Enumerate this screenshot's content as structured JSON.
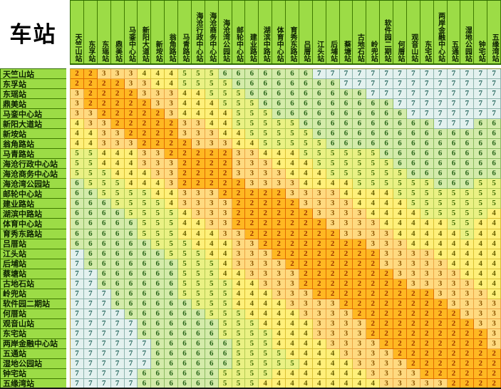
{
  "corner_label": "车站",
  "chart_data": {
    "type": "heatmap",
    "title": "车站",
    "categories": [
      "天竺山站",
      "东孚站",
      "东瑶站",
      "鼎美站",
      "马銮中心站",
      "新阳大道站",
      "新垵站",
      "翁角路站",
      "马青路站",
      "海沧行政中心站",
      "海沧商务中心站",
      "海沧湾公园站",
      "邮轮中心站",
      "建业路站",
      "湖滨中路站",
      "体育中心站",
      "育秀东路站",
      "吕厝站",
      "江头站",
      "后埔站",
      "蔡塘站",
      "古地石站",
      "岭兜站",
      "软件园二期站",
      "何厝站",
      "观音山站",
      "东宅站",
      "两岸金融中心站",
      "五通站",
      "湿地公园站",
      "钟宅站",
      "五缘湾站"
    ],
    "values": [
      [
        2,
        2,
        3,
        3,
        3,
        4,
        4,
        4,
        5,
        5,
        5,
        6,
        6,
        6,
        6,
        6,
        6,
        6,
        7,
        7,
        7,
        7,
        7,
        7,
        7,
        7,
        7,
        7,
        7,
        7,
        7,
        7
      ],
      [
        2,
        2,
        2,
        2,
        3,
        3,
        4,
        4,
        5,
        5,
        5,
        5,
        6,
        6,
        6,
        6,
        6,
        6,
        6,
        6,
        7,
        7,
        7,
        7,
        7,
        7,
        7,
        7,
        7,
        7,
        7,
        7
      ],
      [
        3,
        2,
        2,
        2,
        2,
        3,
        3,
        3,
        4,
        4,
        5,
        5,
        5,
        6,
        6,
        6,
        6,
        6,
        6,
        6,
        6,
        6,
        7,
        7,
        7,
        7,
        7,
        7,
        7,
        7,
        7,
        7
      ],
      [
        3,
        2,
        2,
        2,
        2,
        2,
        3,
        3,
        4,
        4,
        4,
        5,
        5,
        5,
        6,
        6,
        6,
        6,
        6,
        6,
        6,
        6,
        6,
        6,
        7,
        7,
        7,
        7,
        7,
        7,
        7,
        7
      ],
      [
        3,
        3,
        2,
        2,
        2,
        2,
        2,
        3,
        4,
        4,
        4,
        4,
        5,
        5,
        5,
        6,
        6,
        6,
        6,
        6,
        6,
        6,
        6,
        6,
        6,
        7,
        7,
        7,
        7,
        7,
        7,
        7
      ],
      [
        4,
        3,
        3,
        2,
        2,
        2,
        2,
        2,
        3,
        3,
        4,
        4,
        5,
        5,
        5,
        5,
        5,
        6,
        6,
        6,
        6,
        6,
        6,
        6,
        6,
        6,
        6,
        7,
        7,
        7,
        6,
        6
      ],
      [
        4,
        4,
        3,
        3,
        2,
        2,
        2,
        2,
        3,
        3,
        3,
        4,
        4,
        5,
        5,
        5,
        5,
        5,
        6,
        6,
        6,
        6,
        6,
        6,
        6,
        6,
        6,
        6,
        6,
        6,
        6,
        6
      ],
      [
        4,
        4,
        3,
        3,
        3,
        2,
        2,
        2,
        2,
        3,
        3,
        3,
        4,
        4,
        5,
        5,
        5,
        5,
        5,
        6,
        6,
        6,
        6,
        6,
        6,
        6,
        6,
        6,
        6,
        6,
        6,
        6
      ],
      [
        5,
        5,
        4,
        4,
        4,
        3,
        3,
        2,
        2,
        2,
        2,
        2,
        3,
        3,
        4,
        4,
        4,
        5,
        5,
        5,
        5,
        5,
        5,
        6,
        6,
        6,
        6,
        6,
        6,
        6,
        6,
        6
      ],
      [
        5,
        5,
        4,
        4,
        4,
        3,
        3,
        3,
        2,
        2,
        2,
        2,
        3,
        3,
        3,
        4,
        4,
        4,
        5,
        5,
        5,
        5,
        5,
        5,
        6,
        6,
        6,
        6,
        6,
        6,
        6,
        6
      ],
      [
        5,
        5,
        5,
        4,
        4,
        4,
        3,
        3,
        2,
        2,
        2,
        2,
        3,
        3,
        3,
        3,
        4,
        4,
        4,
        5,
        5,
        5,
        5,
        5,
        5,
        6,
        6,
        6,
        6,
        6,
        6,
        6
      ],
      [
        6,
        5,
        5,
        5,
        4,
        4,
        4,
        3,
        2,
        2,
        2,
        2,
        2,
        3,
        3,
        3,
        3,
        4,
        4,
        4,
        4,
        5,
        5,
        5,
        5,
        5,
        5,
        6,
        6,
        6,
        5,
        5
      ],
      [
        6,
        6,
        5,
        5,
        5,
        5,
        4,
        4,
        3,
        3,
        3,
        2,
        2,
        2,
        2,
        2,
        3,
        3,
        3,
        3,
        4,
        4,
        4,
        4,
        5,
        5,
        5,
        5,
        5,
        5,
        5,
        5
      ],
      [
        6,
        6,
        6,
        5,
        5,
        5,
        5,
        4,
        3,
        3,
        3,
        3,
        2,
        2,
        2,
        2,
        2,
        3,
        3,
        3,
        3,
        4,
        4,
        4,
        4,
        5,
        5,
        5,
        5,
        5,
        5,
        5
      ],
      [
        6,
        6,
        6,
        6,
        5,
        5,
        5,
        5,
        4,
        3,
        3,
        3,
        2,
        2,
        2,
        2,
        2,
        2,
        3,
        3,
        3,
        3,
        4,
        4,
        4,
        4,
        5,
        5,
        5,
        5,
        5,
        4
      ],
      [
        6,
        6,
        6,
        6,
        6,
        5,
        5,
        5,
        4,
        4,
        3,
        3,
        2,
        2,
        2,
        2,
        2,
        2,
        2,
        3,
        3,
        3,
        3,
        4,
        4,
        4,
        4,
        4,
        5,
        5,
        4,
        4
      ],
      [
        6,
        6,
        6,
        6,
        6,
        5,
        5,
        5,
        4,
        4,
        4,
        3,
        3,
        2,
        2,
        2,
        2,
        2,
        2,
        2,
        3,
        3,
        3,
        3,
        4,
        4,
        4,
        4,
        4,
        5,
        4,
        4
      ],
      [
        6,
        6,
        6,
        6,
        6,
        6,
        5,
        5,
        5,
        4,
        4,
        4,
        3,
        3,
        2,
        2,
        2,
        2,
        2,
        2,
        2,
        2,
        3,
        3,
        3,
        4,
        4,
        4,
        4,
        4,
        4,
        4
      ],
      [
        7,
        6,
        6,
        6,
        6,
        6,
        6,
        5,
        5,
        5,
        4,
        4,
        3,
        3,
        3,
        2,
        2,
        2,
        2,
        2,
        2,
        2,
        2,
        3,
        3,
        3,
        3,
        4,
        4,
        4,
        4,
        4
      ],
      [
        7,
        6,
        6,
        6,
        6,
        6,
        6,
        6,
        5,
        5,
        5,
        4,
        3,
        3,
        3,
        3,
        2,
        2,
        2,
        2,
        2,
        2,
        2,
        3,
        3,
        3,
        3,
        3,
        4,
        4,
        4,
        4
      ],
      [
        7,
        7,
        6,
        6,
        6,
        6,
        6,
        6,
        5,
        5,
        5,
        4,
        4,
        3,
        3,
        3,
        3,
        2,
        2,
        2,
        2,
        2,
        2,
        2,
        3,
        3,
        3,
        3,
        3,
        4,
        4,
        4
      ],
      [
        7,
        7,
        6,
        6,
        6,
        6,
        6,
        6,
        5,
        5,
        5,
        5,
        4,
        4,
        3,
        3,
        3,
        2,
        2,
        2,
        2,
        2,
        2,
        2,
        2,
        3,
        3,
        3,
        3,
        3,
        4,
        4
      ],
      [
        7,
        7,
        7,
        6,
        6,
        6,
        6,
        6,
        5,
        5,
        5,
        5,
        4,
        4,
        4,
        3,
        3,
        3,
        2,
        2,
        2,
        2,
        2,
        2,
        2,
        2,
        2,
        3,
        3,
        3,
        3,
        4
      ],
      [
        7,
        7,
        7,
        6,
        6,
        6,
        6,
        6,
        6,
        5,
        5,
        5,
        4,
        4,
        4,
        4,
        3,
        3,
        3,
        3,
        2,
        2,
        2,
        2,
        2,
        2,
        2,
        2,
        3,
        3,
        3,
        3
      ],
      [
        7,
        7,
        7,
        7,
        6,
        6,
        6,
        6,
        6,
        6,
        5,
        5,
        5,
        4,
        4,
        4,
        4,
        3,
        3,
        3,
        3,
        2,
        2,
        2,
        2,
        2,
        2,
        2,
        2,
        3,
        3,
        3
      ],
      [
        7,
        7,
        7,
        7,
        7,
        6,
        6,
        6,
        6,
        6,
        6,
        5,
        5,
        5,
        4,
        4,
        4,
        4,
        3,
        3,
        3,
        3,
        2,
        2,
        2,
        2,
        2,
        2,
        2,
        2,
        3,
        3
      ],
      [
        7,
        7,
        7,
        7,
        7,
        6,
        6,
        6,
        6,
        6,
        6,
        5,
        5,
        5,
        5,
        4,
        4,
        4,
        3,
        3,
        3,
        3,
        2,
        2,
        2,
        2,
        2,
        2,
        2,
        2,
        2,
        3
      ],
      [
        7,
        7,
        7,
        7,
        7,
        7,
        6,
        6,
        6,
        6,
        6,
        6,
        5,
        5,
        5,
        4,
        4,
        4,
        4,
        3,
        3,
        3,
        3,
        2,
        2,
        2,
        2,
        2,
        2,
        2,
        2,
        3
      ],
      [
        7,
        7,
        7,
        7,
        7,
        7,
        6,
        6,
        6,
        6,
        6,
        6,
        5,
        5,
        5,
        5,
        4,
        4,
        4,
        4,
        3,
        3,
        3,
        3,
        2,
        2,
        2,
        2,
        2,
        2,
        2,
        2
      ],
      [
        7,
        7,
        7,
        7,
        7,
        7,
        6,
        6,
        6,
        6,
        6,
        6,
        5,
        5,
        5,
        5,
        5,
        4,
        4,
        4,
        4,
        3,
        3,
        3,
        3,
        2,
        2,
        2,
        2,
        2,
        2,
        2
      ],
      [
        7,
        7,
        7,
        7,
        7,
        6,
        6,
        6,
        6,
        6,
        6,
        5,
        5,
        5,
        5,
        4,
        4,
        4,
        4,
        4,
        4,
        4,
        3,
        3,
        3,
        3,
        2,
        2,
        2,
        2,
        2,
        2
      ],
      [
        7,
        7,
        7,
        7,
        7,
        6,
        6,
        6,
        6,
        6,
        6,
        5,
        5,
        5,
        4,
        4,
        4,
        4,
        4,
        4,
        4,
        4,
        4,
        3,
        3,
        3,
        3,
        3,
        2,
        2,
        2,
        2
      ]
    ],
    "value_range": [
      2,
      7
    ],
    "color_scale": {
      "2": {
        "bg": "#FFB822",
        "text": "#9a3200",
        "border": "#e06a00"
      },
      "3": {
        "bg": "#FFDA80",
        "text": "#8b5500",
        "border": "#eba646"
      },
      "4": {
        "bg": "#FFF07A",
        "text": "#6b6200",
        "border": "#d9c035"
      },
      "5": {
        "bg": "#EAF184",
        "text": "#3f6b00",
        "border": "#b5cc55"
      },
      "6": {
        "bg": "#D4EBAA",
        "text": "#2a661a",
        "border": "#8cbb62"
      },
      "7": {
        "bg": "#E3F1EF",
        "text": "#1e6158",
        "border": "#8fb5ae"
      }
    },
    "header_style": {
      "bg": "#9CDC46",
      "grid": "#3f7a00",
      "text": "#0b1f00"
    }
  }
}
